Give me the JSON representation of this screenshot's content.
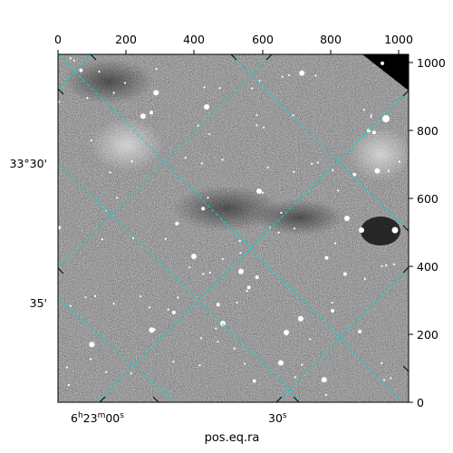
{
  "figure": {
    "xlabel": "pos.eq.ra",
    "pixel_x_ticks": [
      "0",
      "200",
      "400",
      "600",
      "800",
      "1000"
    ],
    "pixel_y_ticks": [
      "0",
      "200",
      "400",
      "600",
      "800",
      "1000"
    ],
    "ra_labels": [
      {
        "h": "6",
        "m": "23",
        "s": "00",
        "label_suffix": "s"
      },
      {
        "s": "30",
        "label_suffix": "s"
      }
    ],
    "dec_labels": [
      "33°30'",
      "35'"
    ],
    "grid_color": "#00d6d6",
    "image_style": "grayscale noisy sky image with scattered bright stars"
  }
}
